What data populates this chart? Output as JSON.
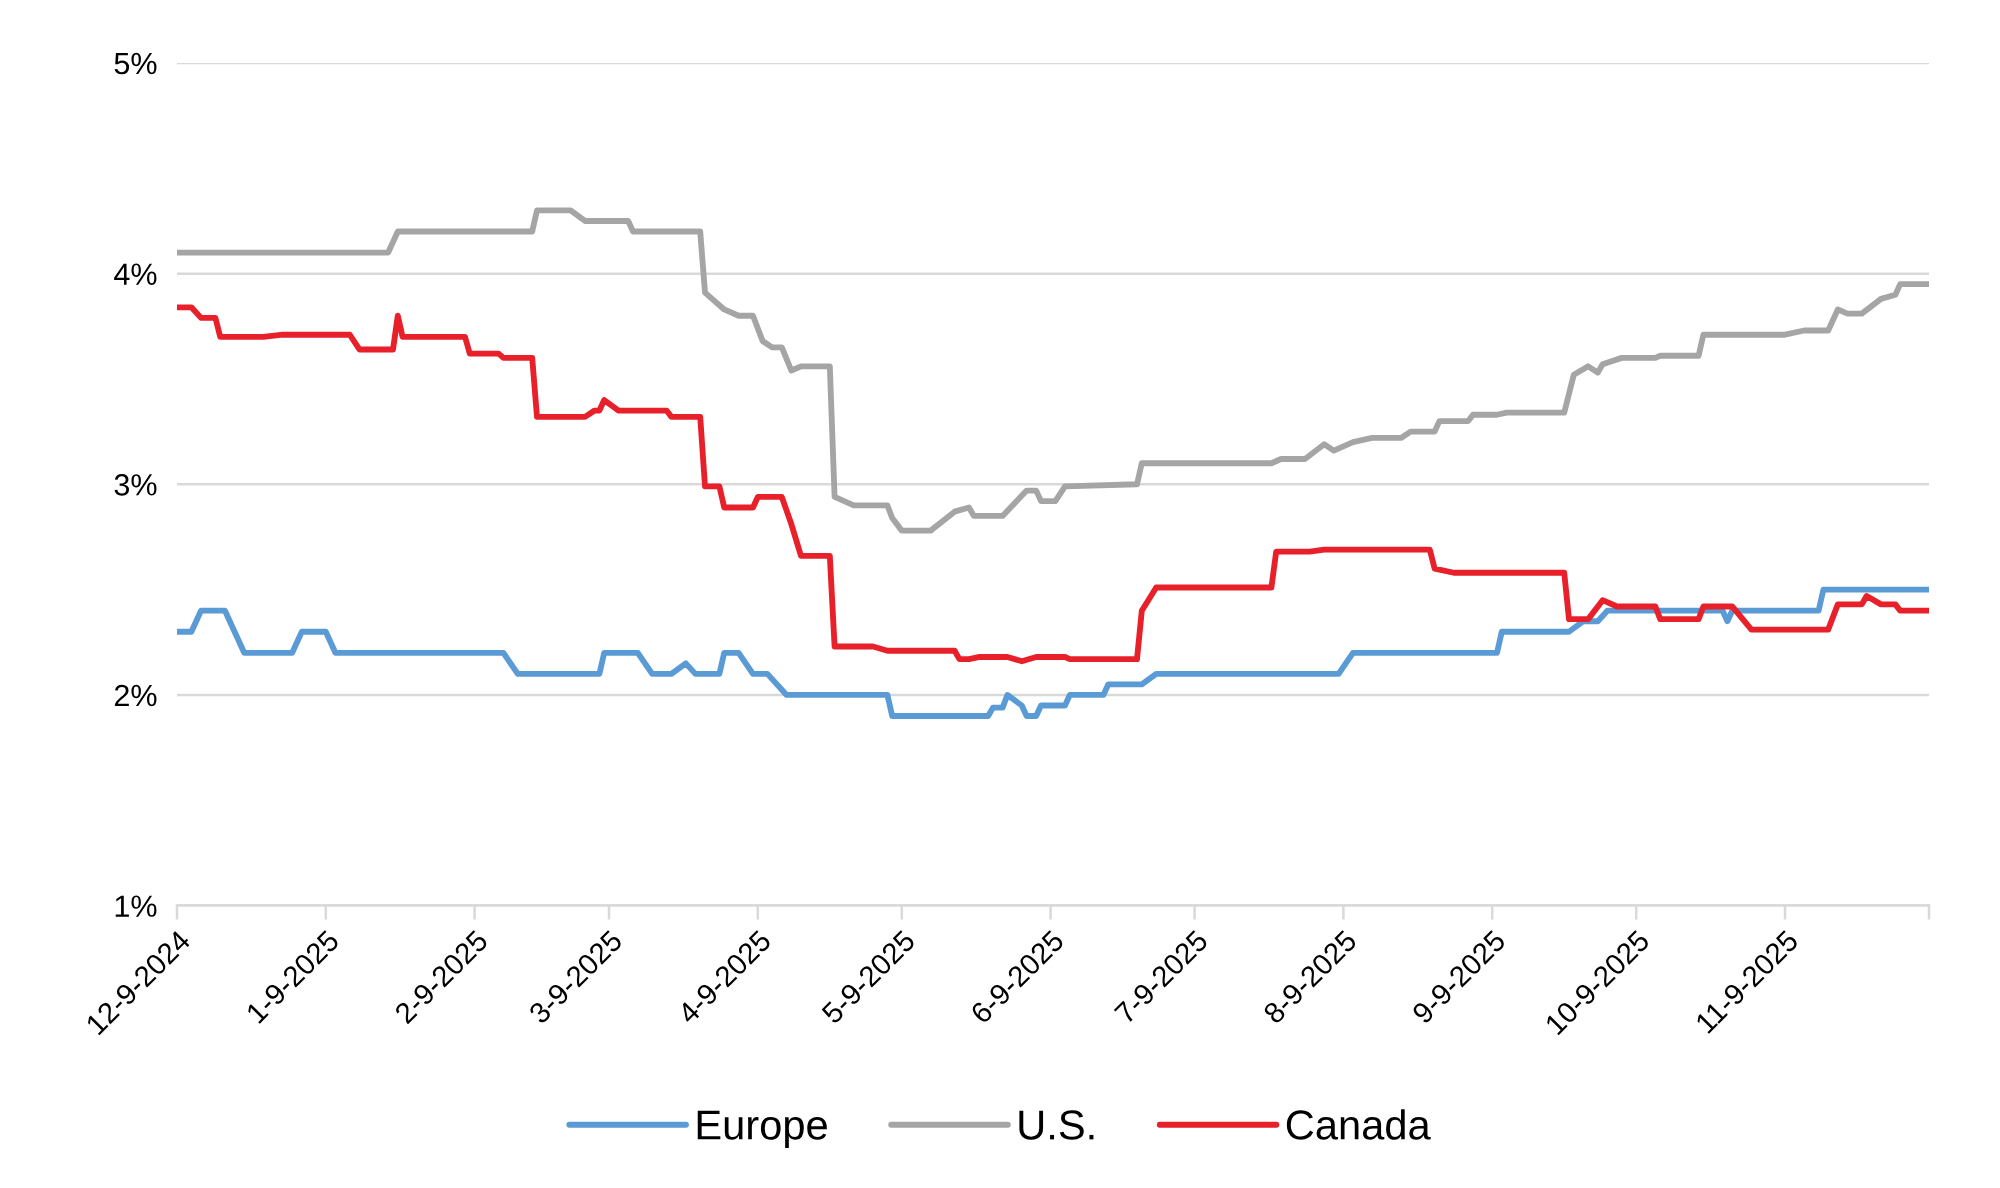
{
  "chart_data": {
    "type": "line",
    "xlim": [
      "2024-12-09",
      "2025-12-09"
    ],
    "xticks": [
      {
        "value": "2024-12-09",
        "label": "12-9-2024"
      },
      {
        "value": "2025-01-09",
        "label": "1-9-2025"
      },
      {
        "value": "2025-02-09",
        "label": "2-9-2025"
      },
      {
        "value": "2025-03-09",
        "label": "3-9-2025"
      },
      {
        "value": "2025-04-09",
        "label": "4-9-2025"
      },
      {
        "value": "2025-05-09",
        "label": "5-9-2025"
      },
      {
        "value": "2025-06-09",
        "label": "6-9-2025"
      },
      {
        "value": "2025-07-09",
        "label": "7-9-2025"
      },
      {
        "value": "2025-08-09",
        "label": "8-9-2025"
      },
      {
        "value": "2025-09-09",
        "label": "9-9-2025"
      },
      {
        "value": "2025-10-09",
        "label": "10-9-2025"
      },
      {
        "value": "2025-11-09",
        "label": "11-9-2025"
      },
      {
        "value": "2025-12-09",
        "label": null
      }
    ],
    "ylim": [
      1,
      5
    ],
    "yticks": [
      {
        "value": 1,
        "label": "1%"
      },
      {
        "value": 2,
        "label": "2%"
      },
      {
        "value": 3,
        "label": "3%"
      },
      {
        "value": 4,
        "label": "4%"
      },
      {
        "value": 5,
        "label": "5%"
      }
    ],
    "grid": "y",
    "legend": "bottom",
    "marker": "none",
    "line_style": "solid",
    "series": [
      {
        "name": "Europe",
        "color": "#5b9bd5",
        "x": [
          "2024-12-09",
          "2024-12-12",
          "2024-12-14",
          "2024-12-19",
          "2024-12-20",
          "2024-12-23",
          "2025-01-02",
          "2025-01-04",
          "2025-01-09",
          "2025-01-11",
          "2025-02-15",
          "2025-02-18",
          "2025-03-07",
          "2025-03-08",
          "2025-03-15",
          "2025-03-18",
          "2025-03-22",
          "2025-03-25",
          "2025-03-27",
          "2025-04-01",
          "2025-04-02",
          "2025-04-05",
          "2025-04-08",
          "2025-04-11",
          "2025-04-15",
          "2025-05-06",
          "2025-05-07",
          "2025-05-27",
          "2025-05-28",
          "2025-05-30",
          "2025-05-31",
          "2025-06-03",
          "2025-06-04",
          "2025-06-06",
          "2025-06-07",
          "2025-06-12",
          "2025-06-13",
          "2025-06-20",
          "2025-06-21",
          "2025-06-28",
          "2025-07-01",
          "2025-08-08",
          "2025-08-11",
          "2025-09-10",
          "2025-09-11",
          "2025-09-25",
          "2025-09-28",
          "2025-10-01",
          "2025-10-03",
          "2025-10-27",
          "2025-10-28",
          "2025-10-29",
          "2025-11-16",
          "2025-11-17",
          "2025-12-09"
        ],
        "values": [
          2.3,
          2.3,
          2.4,
          2.4,
          2.35,
          2.2,
          2.2,
          2.3,
          2.3,
          2.2,
          2.2,
          2.1,
          2.1,
          2.2,
          2.2,
          2.1,
          2.1,
          2.15,
          2.1,
          2.1,
          2.2,
          2.2,
          2.1,
          2.1,
          2.0,
          2.0,
          1.9,
          1.9,
          1.94,
          1.94,
          2.0,
          1.95,
          1.9,
          1.9,
          1.95,
          1.95,
          2.0,
          2.0,
          2.05,
          2.05,
          2.1,
          2.1,
          2.2,
          2.2,
          2.3,
          2.3,
          2.35,
          2.35,
          2.4,
          2.4,
          2.35,
          2.4,
          2.4,
          2.5,
          2.5
        ]
      },
      {
        "name": "U.S.",
        "color": "#a5a5a5",
        "x": [
          "2024-12-09",
          "2025-01-22",
          "2025-01-24",
          "2025-02-21",
          "2025-02-22",
          "2025-03-01",
          "2025-03-04",
          "2025-03-13",
          "2025-03-14",
          "2025-03-28",
          "2025-03-29",
          "2025-04-02",
          "2025-04-05",
          "2025-04-08",
          "2025-04-10",
          "2025-04-12",
          "2025-04-14",
          "2025-04-16",
          "2025-04-18",
          "2025-04-24",
          "2025-04-25",
          "2025-04-29",
          "2025-05-06",
          "2025-05-07",
          "2025-05-09",
          "2025-05-15",
          "2025-05-20",
          "2025-05-23",
          "2025-05-24",
          "2025-05-30",
          "2025-06-04",
          "2025-06-06",
          "2025-06-07",
          "2025-06-10",
          "2025-06-12",
          "2025-06-27",
          "2025-06-28",
          "2025-07-25",
          "2025-07-27",
          "2025-08-01",
          "2025-08-05",
          "2025-08-07",
          "2025-08-11",
          "2025-08-15",
          "2025-08-21",
          "2025-08-23",
          "2025-08-28",
          "2025-08-29",
          "2025-09-04",
          "2025-09-05",
          "2025-09-10",
          "2025-09-12",
          "2025-09-24",
          "2025-09-26",
          "2025-09-29",
          "2025-10-01",
          "2025-10-02",
          "2025-10-06",
          "2025-10-13",
          "2025-10-14",
          "2025-10-22",
          "2025-10-23",
          "2025-11-09",
          "2025-11-13",
          "2025-11-18",
          "2025-11-20",
          "2025-11-22",
          "2025-11-25",
          "2025-11-29",
          "2025-12-02",
          "2025-12-03",
          "2025-12-09"
        ],
        "values": [
          4.1,
          4.1,
          4.2,
          4.2,
          4.3,
          4.3,
          4.25,
          4.25,
          4.2,
          4.2,
          3.91,
          3.83,
          3.8,
          3.8,
          3.68,
          3.65,
          3.65,
          3.54,
          3.56,
          3.56,
          2.94,
          2.9,
          2.9,
          2.84,
          2.78,
          2.78,
          2.87,
          2.89,
          2.85,
          2.85,
          2.97,
          2.97,
          2.92,
          2.92,
          2.99,
          3.0,
          3.1,
          3.1,
          3.12,
          3.12,
          3.19,
          3.16,
          3.2,
          3.22,
          3.22,
          3.25,
          3.25,
          3.3,
          3.3,
          3.33,
          3.33,
          3.34,
          3.34,
          3.52,
          3.56,
          3.53,
          3.57,
          3.6,
          3.6,
          3.61,
          3.61,
          3.71,
          3.71,
          3.73,
          3.73,
          3.83,
          3.81,
          3.81,
          3.88,
          3.9,
          3.95,
          3.95
        ]
      },
      {
        "name": "Canada",
        "color": "#e8202a",
        "x": [
          "2024-12-09",
          "2024-12-12",
          "2024-12-14",
          "2024-12-17",
          "2024-12-18",
          "2024-12-27",
          "2024-12-31",
          "2025-01-14",
          "2025-01-16",
          "2025-01-23",
          "2025-01-24",
          "2025-01-25",
          "2025-02-07",
          "2025-02-08",
          "2025-02-14",
          "2025-02-15",
          "2025-02-21",
          "2025-02-22",
          "2025-03-04",
          "2025-03-06",
          "2025-03-07",
          "2025-03-08",
          "2025-03-11",
          "2025-03-21",
          "2025-03-22",
          "2025-03-28",
          "2025-03-29",
          "2025-04-01",
          "2025-04-02",
          "2025-04-08",
          "2025-04-09",
          "2025-04-14",
          "2025-04-16",
          "2025-04-18",
          "2025-04-24",
          "2025-04-25",
          "2025-05-03",
          "2025-05-06",
          "2025-05-20",
          "2025-05-21",
          "2025-05-23",
          "2025-05-25",
          "2025-05-31",
          "2025-06-03",
          "2025-06-06",
          "2025-06-12",
          "2025-06-13",
          "2025-06-27",
          "2025-06-28",
          "2025-07-01",
          "2025-07-25",
          "2025-07-26",
          "2025-08-02",
          "2025-08-05",
          "2025-08-27",
          "2025-08-28",
          "2025-09-01",
          "2025-09-24",
          "2025-09-25",
          "2025-09-29",
          "2025-10-02",
          "2025-10-05",
          "2025-10-13",
          "2025-10-14",
          "2025-10-22",
          "2025-10-23",
          "2025-10-29",
          "2025-11-02",
          "2025-11-18",
          "2025-11-20",
          "2025-11-25",
          "2025-11-26",
          "2025-11-29",
          "2025-12-02",
          "2025-12-03",
          "2025-12-09"
        ],
        "values": [
          3.84,
          3.84,
          3.79,
          3.79,
          3.7,
          3.7,
          3.71,
          3.71,
          3.64,
          3.64,
          3.8,
          3.7,
          3.7,
          3.62,
          3.62,
          3.6,
          3.6,
          3.32,
          3.32,
          3.35,
          3.35,
          3.4,
          3.35,
          3.35,
          3.32,
          3.32,
          2.99,
          2.99,
          2.89,
          2.89,
          2.94,
          2.94,
          2.81,
          2.66,
          2.66,
          2.23,
          2.23,
          2.21,
          2.21,
          2.17,
          2.17,
          2.18,
          2.18,
          2.16,
          2.18,
          2.18,
          2.17,
          2.17,
          2.4,
          2.51,
          2.51,
          2.68,
          2.68,
          2.69,
          2.69,
          2.6,
          2.58,
          2.58,
          2.36,
          2.36,
          2.45,
          2.42,
          2.42,
          2.36,
          2.36,
          2.42,
          2.42,
          2.31,
          2.31,
          2.43,
          2.43,
          2.47,
          2.43,
          2.43,
          2.4,
          2.4
        ]
      }
    ]
  }
}
